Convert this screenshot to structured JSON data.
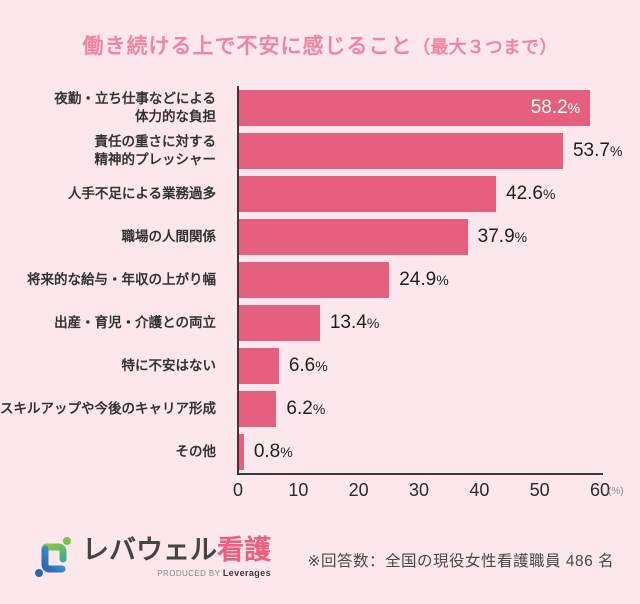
{
  "title": {
    "main": "働き続ける上で不安に感じること",
    "suffix": "（最大３つまで）"
  },
  "chart_data": {
    "type": "bar",
    "orientation": "horizontal",
    "categories": [
      [
        "夜勤・立ち仕事などによる",
        "体力的な負担"
      ],
      [
        "責任の重さに対する",
        "精神的プレッシャー"
      ],
      [
        "人手不足による業務過多"
      ],
      [
        "職場の人間関係"
      ],
      [
        "将来的な給与・年収の上がり幅"
      ],
      [
        "出産・育児・介護との両立"
      ],
      [
        "特に不安はない"
      ],
      [
        "スキルアップや今後のキャリア形成"
      ],
      [
        "その他"
      ]
    ],
    "values": [
      58.2,
      53.7,
      42.6,
      37.9,
      24.9,
      13.4,
      6.6,
      6.2,
      0.8
    ],
    "value_labels": [
      "58.2%",
      "53.7%",
      "42.6%",
      "37.9%",
      "24.9%",
      "13.4%",
      "6.6%",
      "6.2%",
      "0.8%"
    ],
    "value_label_inside": [
      true,
      false,
      false,
      false,
      false,
      false,
      false,
      false,
      false
    ],
    "xlim": [
      0,
      60
    ],
    "x_ticks": [
      0,
      10,
      20,
      30,
      40,
      50,
      60
    ],
    "x_unit": "(%)",
    "grid": false,
    "legend": null,
    "bar_color": "#e55f7e",
    "axis_color": "#3a3a3a"
  },
  "footer": {
    "logo_text_main": "レバウェル",
    "logo_text_accent": "看護",
    "logo_sub_prefix": "PRODUCED BY ",
    "logo_sub_brand": "Leverages",
    "note": "※回答数：全国の現役女性看護職員 486 名"
  },
  "colors": {
    "background": "#fce7ed",
    "title": "#ef86a1",
    "bar": "#e55f7e",
    "value_text": "#1f1f1f",
    "value_text_inside": "#ffffff",
    "label_text": "#333333",
    "logo_pink": "#e9617f",
    "logo_dark": "#474341",
    "logo_green": "#7cc143",
    "logo_blue": "#2f7fc4"
  }
}
